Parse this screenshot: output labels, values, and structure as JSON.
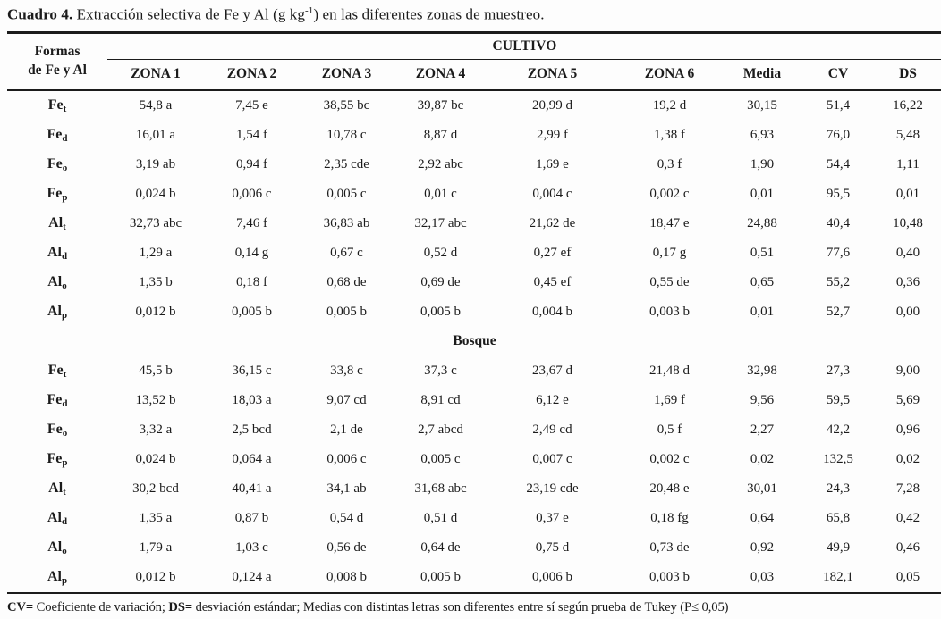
{
  "title": {
    "label": "Cuadro 4.",
    "text_before_sup": " Extracción selectiva de Fe y Al (g kg",
    "superscript": "-1",
    "text_after_sup": ") en las diferentes zonas de muestreo."
  },
  "table": {
    "stub_header_line1": "Formas",
    "stub_header_line2": "de Fe y Al",
    "group_header": "CULTIVO",
    "columns": [
      "ZONA 1",
      "ZONA 2",
      "ZONA 3",
      "ZONA 4",
      "ZONA 5",
      "ZONA 6",
      "Media",
      "CV",
      "DS"
    ],
    "sections": [
      {
        "heading": null,
        "rows": [
          {
            "label": {
              "base": "Fe",
              "sub": "t"
            },
            "values": [
              "54,8 a",
              "7,45 e",
              "38,55 bc",
              "39,87 bc",
              "20,99 d",
              "19,2 d",
              "30,15",
              "51,4",
              "16,22"
            ]
          },
          {
            "label": {
              "base": "Fe",
              "sub": "d"
            },
            "values": [
              "16,01 a",
              "1,54 f",
              "10,78 c",
              "8,87 d",
              "2,99 f",
              "1,38 f",
              "6,93",
              "76,0",
              "5,48"
            ]
          },
          {
            "label": {
              "base": "Fe",
              "sub": "o"
            },
            "values": [
              "3,19 ab",
              "0,94 f",
              "2,35 cde",
              "2,92 abc",
              "1,69 e",
              "0,3 f",
              "1,90",
              "54,4",
              "1,11"
            ]
          },
          {
            "label": {
              "base": "Fe",
              "sub": "p"
            },
            "values": [
              "0,024 b",
              "0,006 c",
              "0,005 c",
              "0,01 c",
              "0,004 c",
              "0,002 c",
              "0,01",
              "95,5",
              "0,01"
            ]
          },
          {
            "label": {
              "base": "Al",
              "sub": "t"
            },
            "values": [
              "32,73 abc",
              "7,46 f",
              "36,83 ab",
              "32,17 abc",
              "21,62 de",
              "18,47 e",
              "24,88",
              "40,4",
              "10,48"
            ]
          },
          {
            "label": {
              "base": "Al",
              "sub": "d"
            },
            "values": [
              "1,29 a",
              "0,14 g",
              "0,67 c",
              "0,52 d",
              "0,27 ef",
              "0,17 g",
              "0,51",
              "77,6",
              "0,40"
            ]
          },
          {
            "label": {
              "base": "Al",
              "sub": "o"
            },
            "values": [
              "1,35 b",
              "0,18 f",
              "0,68 de",
              "0,69 de",
              "0,45 ef",
              "0,55 de",
              "0,65",
              "55,2",
              "0,36"
            ]
          },
          {
            "label": {
              "base": "Al",
              "sub": "p"
            },
            "values": [
              "0,012 b",
              "0,005 b",
              "0,005 b",
              "0,005 b",
              "0,004 b",
              "0,003 b",
              "0,01",
              "52,7",
              "0,00"
            ]
          }
        ]
      },
      {
        "heading": "Bosque",
        "rows": [
          {
            "label": {
              "base": "Fe",
              "sub": "t"
            },
            "values": [
              "45,5 b",
              "36,15 c",
              "33,8 c",
              "37,3 c",
              "23,67 d",
              "21,48 d",
              "32,98",
              "27,3",
              "9,00"
            ]
          },
          {
            "label": {
              "base": "Fe",
              "sub": "d"
            },
            "values": [
              "13,52 b",
              "18,03 a",
              "9,07 cd",
              "8,91 cd",
              "6,12 e",
              "1,69 f",
              "9,56",
              "59,5",
              "5,69"
            ]
          },
          {
            "label": {
              "base": "Fe",
              "sub": "o"
            },
            "values": [
              "3,32 a",
              "2,5 bcd",
              "2,1 de",
              "2,7 abcd",
              "2,49 cd",
              "0,5 f",
              "2,27",
              "42,2",
              "0,96"
            ]
          },
          {
            "label": {
              "base": "Fe",
              "sub": "p"
            },
            "values": [
              "0,024 b",
              "0,064 a",
              "0,006 c",
              "0,005 c",
              "0,007 c",
              "0,002 c",
              "0,02",
              "132,5",
              "0,02"
            ]
          },
          {
            "label": {
              "base": "Al",
              "sub": "t"
            },
            "values": [
              "30,2 bcd",
              "40,41 a",
              "34,1 ab",
              "31,68 abc",
              "23,19 cde",
              "20,48 e",
              "30,01",
              "24,3",
              "7,28"
            ]
          },
          {
            "label": {
              "base": "Al",
              "sub": "d"
            },
            "values": [
              "1,35 a",
              "0,87 b",
              "0,54 d",
              "0,51 d",
              "0,37 e",
              "0,18 fg",
              "0,64",
              "65,8",
              "0,42"
            ]
          },
          {
            "label": {
              "base": "Al",
              "sub": "o"
            },
            "values": [
              "1,79 a",
              "1,03 c",
              "0,56 de",
              "0,64 de",
              "0,75 d",
              "0,73 de",
              "0,92",
              "49,9",
              "0,46"
            ]
          },
          {
            "label": {
              "base": "Al",
              "sub": "p"
            },
            "values": [
              "0,012 b",
              "0,124 a",
              "0,008 b",
              "0,005 b",
              "0,006 b",
              "0,003 b",
              "0,03",
              "182,1",
              "0,05"
            ]
          }
        ]
      }
    ]
  },
  "footnote": {
    "cv_label": "CV=",
    "cv_text": " Coeficiente de variación; ",
    "ds_label": "DS=",
    "ds_text": " desviación estándar; Medias con distintas letras son diferentes entre sí según prueba de Tukey (P≤ 0,05)"
  },
  "colors": {
    "text": "#1b1b1b",
    "rule": "#1c1c1c",
    "background": "#fdfdfd"
  }
}
